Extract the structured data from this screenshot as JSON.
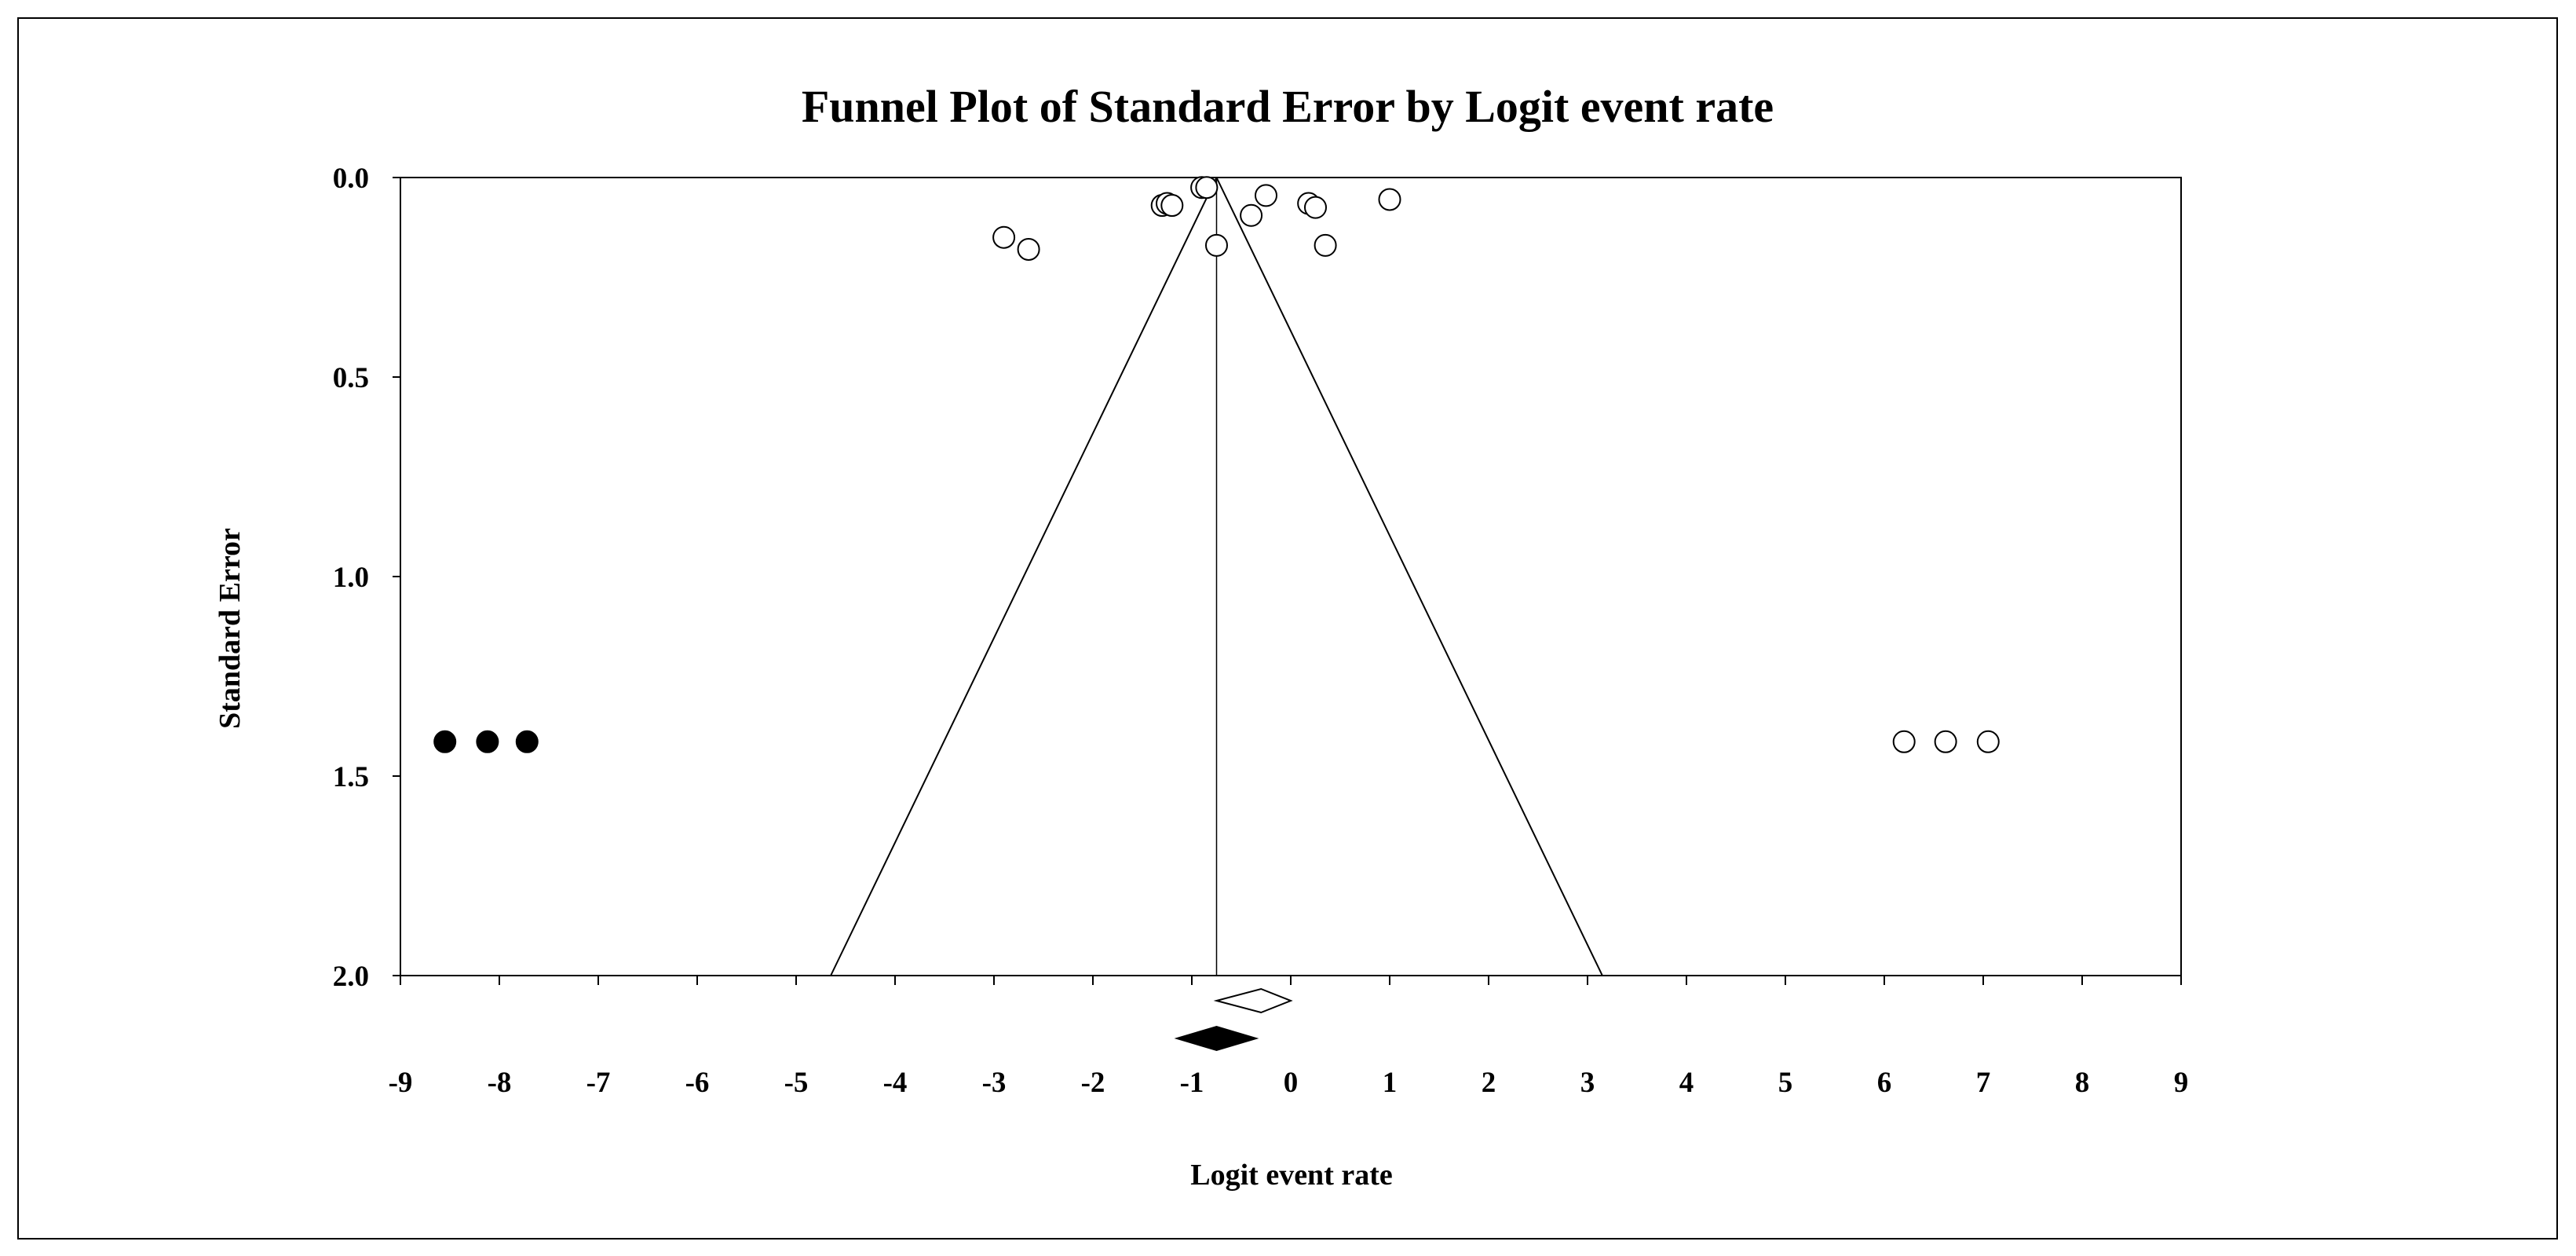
{
  "chart_data": {
    "type": "scatter",
    "title": "Funnel Plot of Standard Error by Logit event rate",
    "xlabel": "Logit event rate",
    "ylabel": "Standard Error",
    "xlim": [
      -9,
      9
    ],
    "ylim": [
      0,
      2
    ],
    "y_reversed": true,
    "x_ticks": [
      -9,
      -8,
      -7,
      -6,
      -5,
      -4,
      -3,
      -2,
      -1,
      0,
      1,
      2,
      3,
      4,
      5,
      6,
      7,
      8,
      9
    ],
    "x_tick_labels": [
      "-9",
      "-8",
      "-7",
      "-6",
      "-5",
      "-4",
      "-3",
      "-2",
      "-1",
      "0",
      "1",
      "2",
      "3",
      "4",
      "5",
      "6",
      "7",
      "8",
      "9"
    ],
    "y_ticks": [
      0,
      0.5,
      1,
      1.5,
      2
    ],
    "y_tick_labels": [
      "0.0",
      "0.5",
      "1.0",
      "1.5",
      "2.0"
    ],
    "grid": false,
    "series": [
      {
        "marker": "open-circle",
        "points": [
          {
            "x": -2.9,
            "y": 0.15
          },
          {
            "x": -2.65,
            "y": 0.18
          },
          {
            "x": -1.3,
            "y": 0.07
          },
          {
            "x": -1.25,
            "y": 0.065
          },
          {
            "x": -1.2,
            "y": 0.07
          },
          {
            "x": -0.9,
            "y": 0.025
          },
          {
            "x": -0.85,
            "y": 0.025
          },
          {
            "x": -0.75,
            "y": 0.17
          },
          {
            "x": -0.4,
            "y": 0.095
          },
          {
            "x": -0.25,
            "y": 0.045
          },
          {
            "x": 0.18,
            "y": 0.065
          },
          {
            "x": 0.25,
            "y": 0.075
          },
          {
            "x": 0.35,
            "y": 0.17
          },
          {
            "x": 1.0,
            "y": 0.055
          },
          {
            "x": 6.2,
            "y": 1.414
          },
          {
            "x": 6.62,
            "y": 1.414
          },
          {
            "x": 7.05,
            "y": 1.414
          }
        ]
      },
      {
        "marker": "filled-circle",
        "points": [
          {
            "x": -8.55,
            "y": 1.414
          },
          {
            "x": -8.12,
            "y": 1.414
          },
          {
            "x": -7.72,
            "y": 1.414
          }
        ]
      }
    ],
    "funnel": {
      "center": -0.75,
      "apex_y": 0,
      "base_y": 2,
      "left_x": -4.65,
      "right_x": 3.15
    },
    "summary_diamonds": [
      {
        "style": "open",
        "center": -0.3,
        "low": -0.75,
        "high": 0.0
      },
      {
        "style": "filled",
        "center": -0.75,
        "low": -1.15,
        "high": -0.35
      }
    ],
    "colors": {
      "axis": "#000000",
      "open_marker_fill": "#ffffff",
      "filled_marker_fill": "#000000"
    }
  }
}
